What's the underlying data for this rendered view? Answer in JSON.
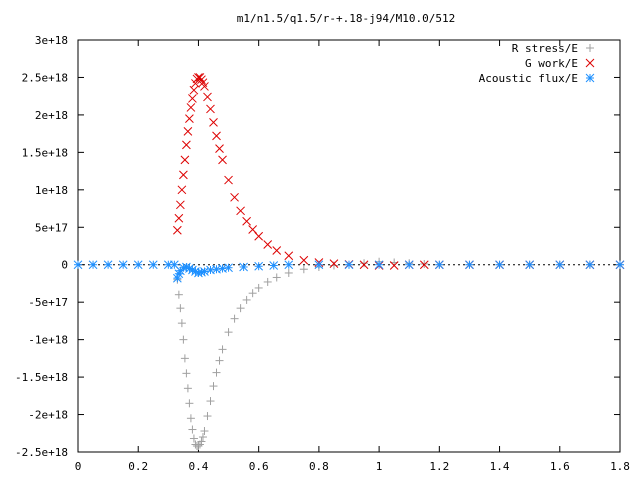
{
  "chart_data": {
    "type": "scatter",
    "title": "m1/n1.5/q1.5/r-+.18-j94/M10.0/512",
    "xlabel": "",
    "ylabel": "",
    "xlim": [
      0,
      1.8
    ],
    "ylim": [
      -2.5e+18,
      3e+18
    ],
    "x_ticks": [
      0,
      0.2,
      0.4,
      0.6,
      0.8,
      1,
      1.2,
      1.4,
      1.6,
      1.8
    ],
    "x_tick_labels": [
      "0",
      "0.2",
      "0.4",
      "0.6",
      "0.8",
      "1",
      "1.2",
      "1.4",
      "1.6",
      "1.8"
    ],
    "y_ticks": [
      3e+18,
      2.5e+18,
      2e+18,
      1.5e+18,
      1e+18,
      5e+17,
      0,
      -5e+17,
      -1e+18,
      -1.5e+18,
      -2e+18,
      -2.5e+18
    ],
    "y_tick_labels": [
      "3e+18",
      "2.5e+18",
      "2e+18",
      "1.5e+18",
      "1e+18",
      "5e+17",
      "0",
      "-5e+17",
      "-1e+18",
      "-1.5e+18",
      "-2e+18",
      "-2.5e+18"
    ],
    "grid": false,
    "legend_position": "top-right",
    "series": [
      {
        "name": "R stress/E",
        "marker": "plus",
        "color": "#a0a0a0",
        "x": [
          0.33,
          0.335,
          0.34,
          0.345,
          0.35,
          0.355,
          0.36,
          0.365,
          0.37,
          0.375,
          0.38,
          0.385,
          0.39,
          0.395,
          0.4,
          0.405,
          0.41,
          0.415,
          0.42,
          0.43,
          0.44,
          0.45,
          0.46,
          0.47,
          0.48,
          0.5,
          0.52,
          0.54,
          0.56,
          0.58,
          0.6,
          0.63,
          0.66,
          0.7,
          0.75,
          0.8,
          0.85,
          0.9,
          0.95,
          1.0,
          1.05,
          1.1,
          1.15,
          1.2,
          1.3,
          1.4,
          1.5,
          1.6,
          1.7,
          1.8
        ],
        "y": [
          -2e+17,
          -4e+17,
          -5.8e+17,
          -7.8e+17,
          -1e+18,
          -1.25e+18,
          -1.45e+18,
          -1.65e+18,
          -1.85e+18,
          -2.05e+18,
          -2.2e+18,
          -2.32e+18,
          -2.4e+18,
          -2.42e+18,
          -2.42e+18,
          -2.4e+18,
          -2.36e+18,
          -2.3e+18,
          -2.22e+18,
          -2.02e+18,
          -1.82e+18,
          -1.62e+18,
          -1.44e+18,
          -1.28e+18,
          -1.13e+18,
          -9e+17,
          -7.2e+17,
          -5.8e+17,
          -4.7e+17,
          -3.8e+17,
          -3.1e+17,
          -2.3e+17,
          -1.7e+17,
          -1.1e+17,
          -6e+16,
          -3e+16,
          -1e+16,
          0,
          2e+16,
          4e+16,
          3e+16,
          2e+16,
          1e+16,
          0,
          0,
          0,
          0,
          0,
          0,
          0
        ]
      },
      {
        "name": "G work/E",
        "marker": "cross",
        "color": "#dd0000",
        "x": [
          0.33,
          0.335,
          0.34,
          0.345,
          0.35,
          0.355,
          0.36,
          0.365,
          0.37,
          0.375,
          0.38,
          0.385,
          0.39,
          0.395,
          0.4,
          0.405,
          0.41,
          0.415,
          0.42,
          0.43,
          0.44,
          0.45,
          0.46,
          0.47,
          0.48,
          0.5,
          0.52,
          0.54,
          0.56,
          0.58,
          0.6,
          0.63,
          0.66,
          0.7,
          0.75,
          0.8,
          0.85,
          0.9,
          0.95,
          1.0,
          1.05,
          1.1,
          1.15,
          1.2,
          1.3,
          1.4,
          1.5,
          1.6,
          1.7,
          1.8
        ],
        "y": [
          4.6e+17,
          6.2e+17,
          8e+17,
          1e+18,
          1.2e+18,
          1.4e+18,
          1.6e+18,
          1.78e+18,
          1.95e+18,
          2.1e+18,
          2.22e+18,
          2.33e+18,
          2.42e+18,
          2.48e+18,
          2.5e+18,
          2.5e+18,
          2.47e+18,
          2.43e+18,
          2.38e+18,
          2.24e+18,
          2.08e+18,
          1.9e+18,
          1.72e+18,
          1.55e+18,
          1.4e+18,
          1.13e+18,
          9e+17,
          7.2e+17,
          5.8e+17,
          4.7e+17,
          3.8e+17,
          2.7e+17,
          1.9e+17,
          1.2e+17,
          6e+16,
          3e+16,
          1.5e+16,
          5000000000000000.0,
          0,
          -1e+16,
          -1e+16,
          0,
          0,
          0,
          0,
          0,
          0,
          0,
          0,
          0
        ]
      },
      {
        "name": "Acoustic flux/E",
        "marker": "star",
        "color": "#1e90ff",
        "x": [
          0,
          0.05,
          0.1,
          0.15,
          0.2,
          0.25,
          0.3,
          0.32,
          0.33,
          0.335,
          0.34,
          0.35,
          0.36,
          0.37,
          0.38,
          0.39,
          0.4,
          0.41,
          0.42,
          0.44,
          0.46,
          0.48,
          0.5,
          0.55,
          0.6,
          0.65,
          0.7,
          0.8,
          0.9,
          1.0,
          1.1,
          1.2,
          1.3,
          1.4,
          1.5,
          1.6,
          1.7,
          1.8
        ],
        "y": [
          0,
          0,
          0,
          0,
          0,
          0,
          0,
          0,
          -1.8e+17,
          -1.2e+17,
          -8e+16,
          -4e+16,
          -3e+16,
          -5e+16,
          -7e+16,
          -9e+16,
          -1.1e+17,
          -1e+17,
          -9e+16,
          -7e+16,
          -6e+16,
          -5e+16,
          -4e+16,
          -3e+16,
          -2e+16,
          -1e+16,
          0,
          0,
          0,
          0,
          0,
          0,
          0,
          0,
          0,
          0,
          0,
          0
        ]
      }
    ]
  }
}
